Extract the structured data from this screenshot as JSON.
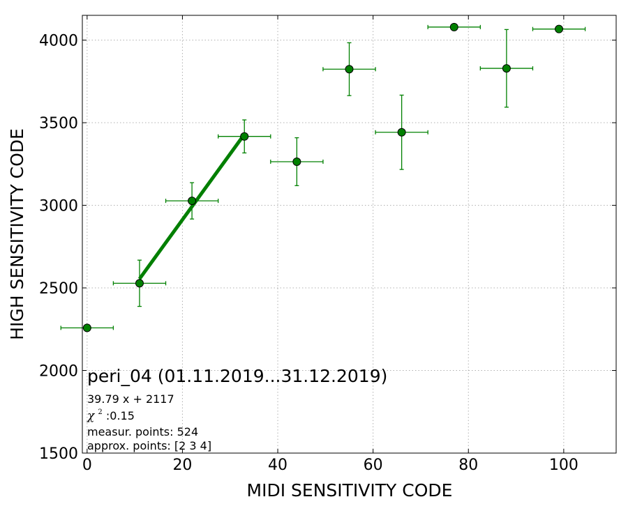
{
  "chart_data": {
    "type": "scatter",
    "xlabel": "MIDI SENSITIVITY CODE",
    "ylabel": "HIGH SENSITIVITY CODE",
    "xlim": [
      -1,
      111
    ],
    "ylim": [
      1500,
      4150
    ],
    "xticks": [
      0,
      20,
      40,
      60,
      80,
      100
    ],
    "yticks": [
      1500,
      2000,
      2500,
      3000,
      3500,
      4000
    ],
    "grid": true,
    "colors": {
      "series": "#008000",
      "fit": "#007f00",
      "marker_edge": "#000000"
    },
    "series": [
      {
        "x": [
          0,
          11,
          22,
          33,
          44,
          55,
          66,
          77,
          88,
          99
        ],
        "y": [
          2258,
          2528,
          3027,
          3417,
          3264,
          3824,
          3442,
          4079,
          3829,
          4067
        ],
        "xerr": [
          5.5,
          5.5,
          5.5,
          5.5,
          5.5,
          5.5,
          5.5,
          5.5,
          5.5,
          5.5
        ],
        "yerr": [
          20,
          140,
          110,
          100,
          145,
          160,
          225,
          12,
          235,
          20
        ]
      }
    ],
    "fit": {
      "x": [
        11,
        33
      ],
      "slope": 39.79,
      "intercept": 2117
    },
    "annotation": {
      "title": "peri_04 (01.11.2019...31.12.2019)",
      "equation": "39.79 x + 2117",
      "chi_symbol": "χ",
      "chi_sup": "2",
      "chi_value": " :0.15",
      "measur_points": "measur. points: 524",
      "approx_points": "approx. points: [2 3 4]"
    }
  }
}
